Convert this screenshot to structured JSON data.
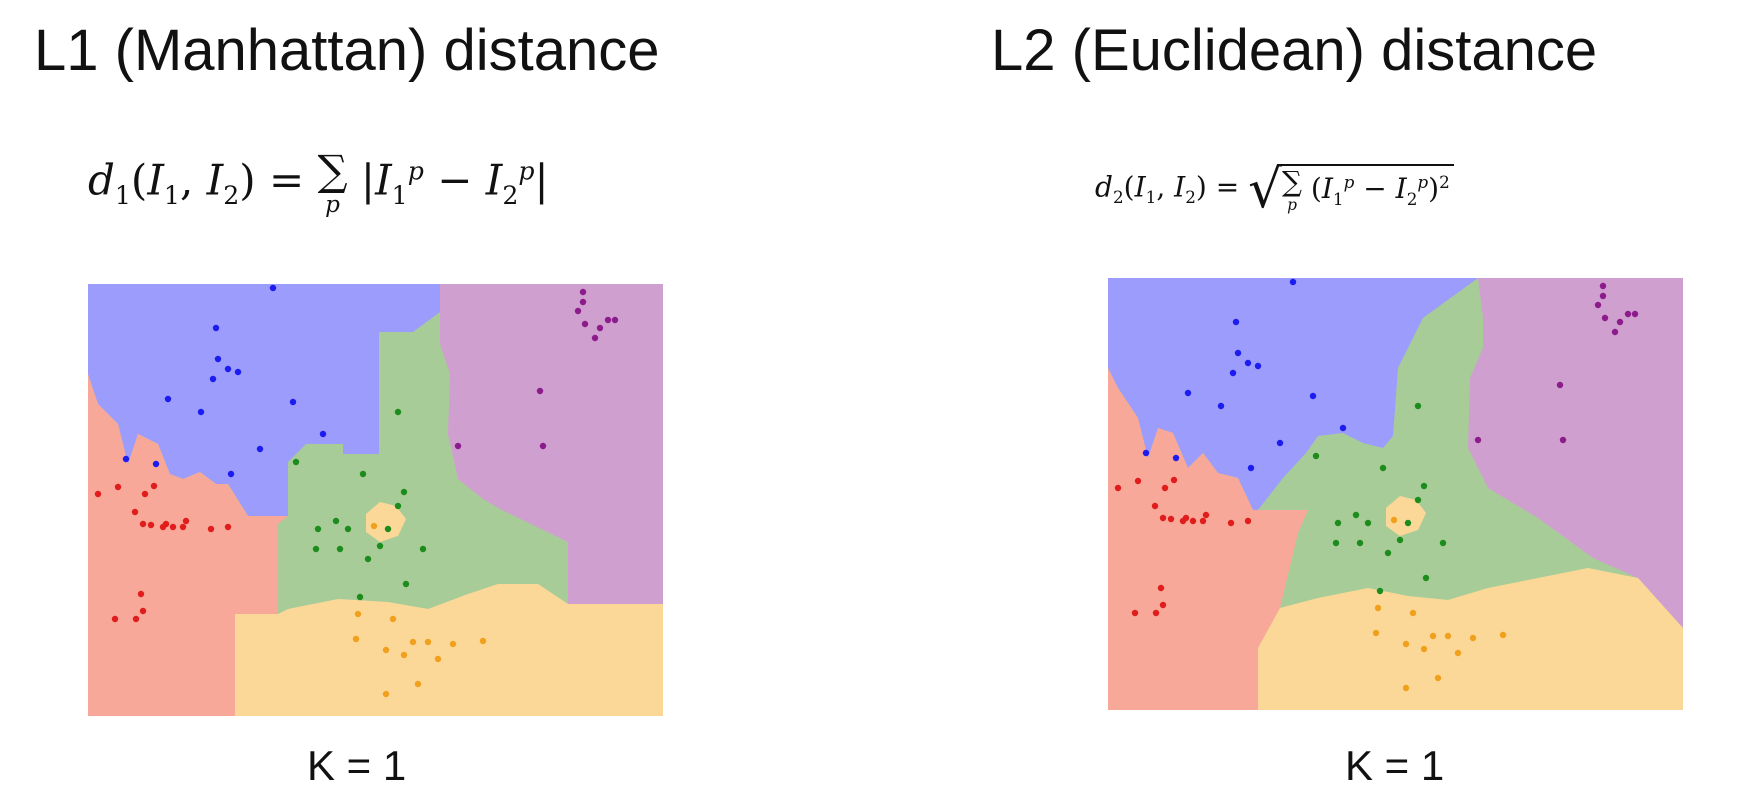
{
  "panels": [
    {
      "title": "L1 (Manhattan) distance",
      "formula": {
        "lhs_func": "d",
        "lhs_sub": "1",
        "lhs_args": "(I",
        "arg1_sub": "1",
        "comma": ", I",
        "arg2_sub": "2",
        "close": ")",
        "eq": "=",
        "sum_symbol": "∑",
        "sum_index": "p",
        "abs_open": "|",
        "term1": "I",
        "term1_sub": "1",
        "term1_sup": "p",
        "minus": "−",
        "term2": "I",
        "term2_sub": "2",
        "term2_sup": "p",
        "abs_close": "|"
      },
      "k_label": "K = 1"
    },
    {
      "title": "L2 (Euclidean) distance",
      "formula": {
        "lhs_func": "d",
        "lhs_sub": "2",
        "lhs_args": "(I",
        "arg1_sub": "1",
        "comma": ", I",
        "arg2_sub": "2",
        "close": ")",
        "eq": "=",
        "sqrt_symbol": "√",
        "sum_symbol": "∑",
        "sum_index": "p",
        "paren_open": "(",
        "term1": "I",
        "term1_sub": "1",
        "term1_sup": "p",
        "minus": "−",
        "term2": "I",
        "term2_sub": "2",
        "term2_sup": "p",
        "paren_close": ")",
        "exponent": "2"
      },
      "k_label": "K = 1"
    }
  ],
  "colors": {
    "region_blue": "#9b9cfc",
    "region_purple": "#cf9fcf",
    "region_green": "#a8cc98",
    "region_red": "#f8a898",
    "region_orange": "#fcd898",
    "point_blue": "#1c1cf0",
    "point_purple": "#8c1c8c",
    "point_green": "#1c8c1c",
    "point_red": "#e01c1c",
    "point_orange": "#f0a01c"
  }
}
